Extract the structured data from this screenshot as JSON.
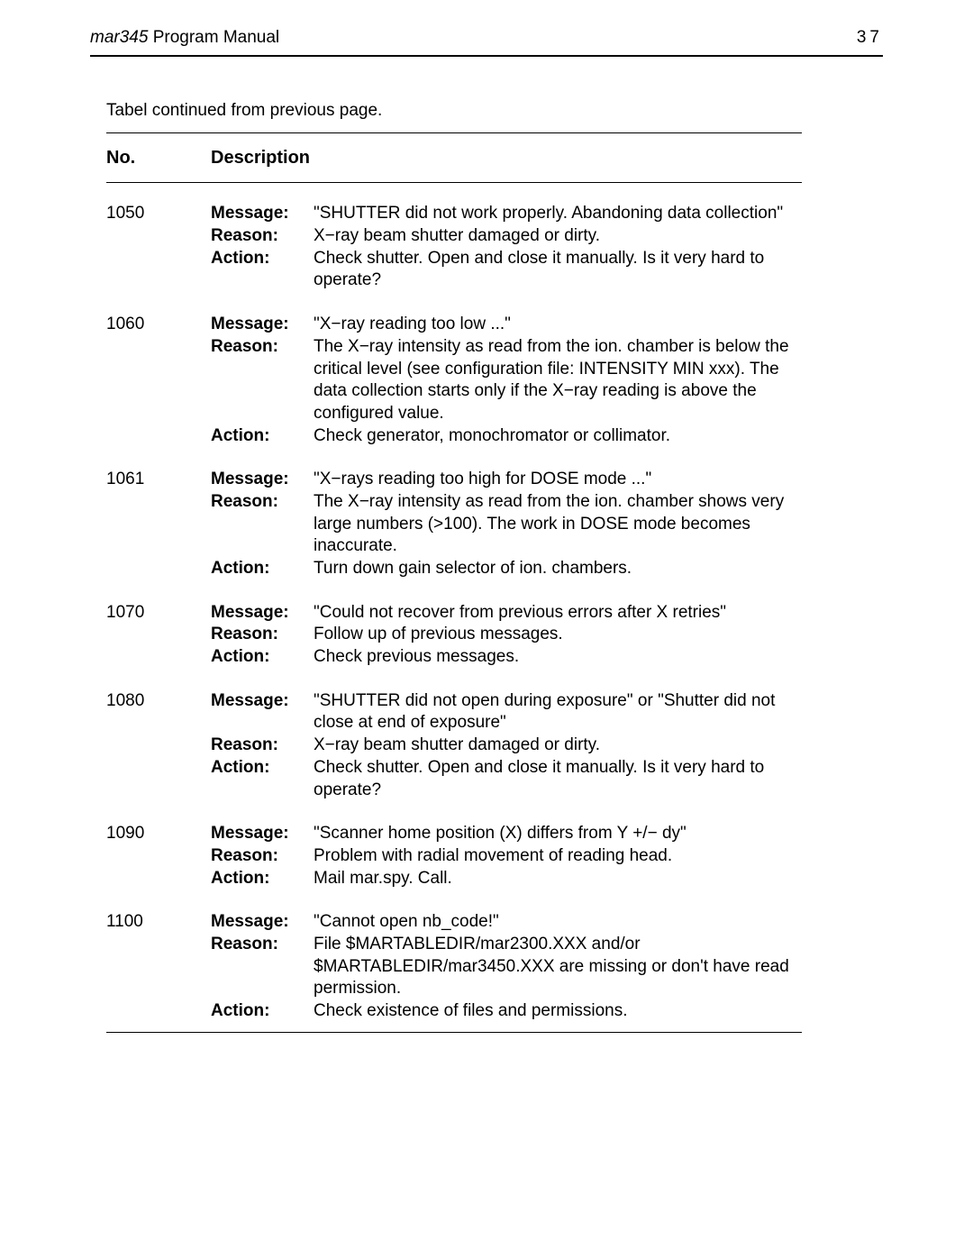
{
  "header": {
    "title_italic": "mar345",
    "title_rest": " Program Manual",
    "page_number": "37"
  },
  "caption": "Tabel continued from previous page.",
  "table": {
    "header_no": "No.",
    "header_desc": "Description",
    "label_message": "Message:",
    "label_reason": "Reason:",
    "label_action": "Action:",
    "entries": [
      {
        "no": "1050",
        "message": "\"SHUTTER did not work properly. Abandoning data collection\"",
        "reason": "X−ray beam shutter damaged or dirty.",
        "action": "Check shutter. Open and close it manually. Is it very hard to operate?"
      },
      {
        "no": "1060",
        "message": "\"X−ray reading too low ...\"",
        "reason": "The X−ray intensity as read from the ion. chamber is below the critical level (see configuration file: INTENSITY   MIN xxx). The data collection starts only if the X−ray reading is above the configured value.",
        "action": "Check generator, monochromator or collimator."
      },
      {
        "no": "1061",
        "message": "\"X−rays reading too high for DOSE mode ...\"",
        "reason": "The X−ray intensity as read from the ion. chamber shows very large numbers (>100). The work in DOSE mode becomes inaccurate.",
        "action": "Turn down gain selector of ion. chambers."
      },
      {
        "no": "1070",
        "message": "\"Could not recover from previous errors after X retries\"",
        "reason": "Follow up of previous messages.",
        "action": "Check previous messages."
      },
      {
        "no": "1080",
        "message": "\"SHUTTER did not open during exposure\" or \"Shutter did not close at end of exposure\"",
        "reason": "X−ray beam shutter damaged or dirty.",
        "action": "Check shutter. Open and close it manually. Is it very hard to operate?"
      },
      {
        "no": "1090",
        "message": "\"Scanner home position (X) differs from Y +/− dy\"",
        "reason": "Problem with radial movement of reading head.",
        "action": "Mail mar.spy. Call."
      },
      {
        "no": "1100",
        "message": "\"Cannot open nb_code!\"",
        "reason": "File $MARTABLEDIR/mar2300.XXX and/or $MARTABLEDIR/mar3450.XXX are missing or don't have read permission.",
        "action": "Check existence of files and permissions."
      }
    ]
  }
}
